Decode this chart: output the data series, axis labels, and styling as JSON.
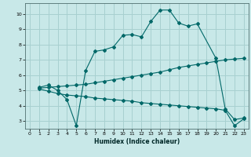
{
  "xlabel": "Humidex (Indice chaleur)",
  "bg_color": "#c8e8e8",
  "grid_color": "#a8d0d0",
  "line_color": "#006868",
  "xlim": [
    -0.5,
    23.5
  ],
  "ylim": [
    2.5,
    10.7
  ],
  "xticks": [
    0,
    1,
    2,
    3,
    4,
    5,
    6,
    7,
    8,
    9,
    10,
    11,
    12,
    13,
    14,
    15,
    16,
    17,
    18,
    19,
    20,
    21,
    22,
    23
  ],
  "yticks": [
    3,
    4,
    5,
    6,
    7,
    8,
    9,
    10
  ],
  "series": [
    {
      "x": [
        1,
        2,
        3,
        4,
        5,
        6,
        7,
        8,
        9,
        10,
        11,
        12,
        13,
        14,
        15,
        16,
        17,
        18,
        20,
        21,
        22,
        23
      ],
      "y": [
        5.2,
        5.35,
        5.0,
        4.4,
        2.7,
        6.3,
        7.55,
        7.65,
        7.85,
        8.6,
        8.65,
        8.5,
        9.5,
        10.25,
        10.25,
        9.4,
        9.2,
        9.35,
        7.1,
        3.8,
        3.1,
        3.2
      ]
    },
    {
      "x": [
        1,
        2,
        3,
        4,
        5,
        6,
        7,
        8,
        9,
        10,
        11,
        12,
        13,
        14,
        15,
        16,
        17,
        18,
        19,
        20,
        21,
        22,
        23
      ],
      "y": [
        5.15,
        5.2,
        5.25,
        5.3,
        5.35,
        5.4,
        5.5,
        5.6,
        5.7,
        5.8,
        5.9,
        6.0,
        6.1,
        6.2,
        6.35,
        6.5,
        6.6,
        6.7,
        6.8,
        6.9,
        7.0,
        7.05,
        7.1
      ]
    },
    {
      "x": [
        1,
        2,
        3,
        4,
        5,
        6,
        7,
        8,
        9,
        10,
        11,
        12,
        13,
        14,
        15,
        16,
        17,
        18,
        19,
        20,
        21,
        22,
        23
      ],
      "y": [
        5.1,
        4.95,
        4.8,
        4.7,
        4.65,
        4.6,
        4.5,
        4.45,
        4.4,
        4.35,
        4.3,
        4.2,
        4.15,
        4.1,
        4.05,
        4.0,
        3.95,
        3.9,
        3.85,
        3.8,
        3.7,
        2.7,
        3.15
      ]
    }
  ]
}
